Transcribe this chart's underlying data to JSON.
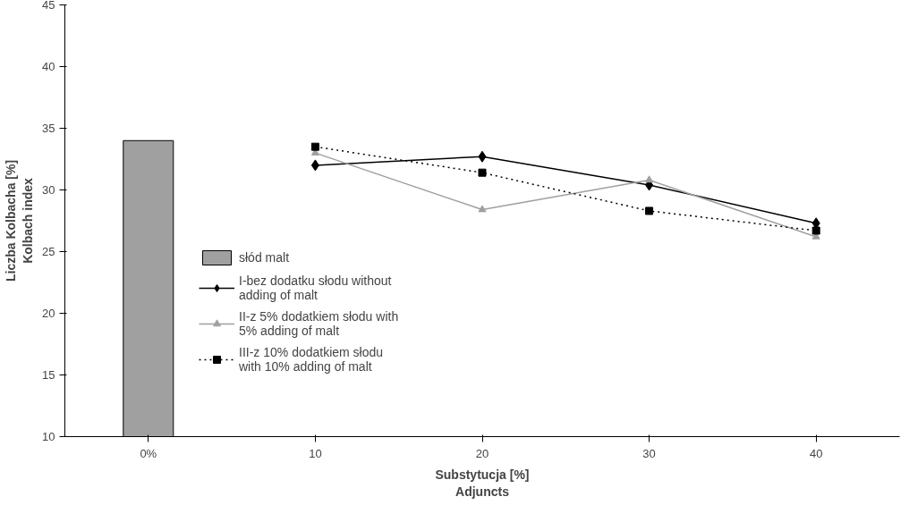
{
  "chart_data": {
    "type": "line",
    "xlabel": "Substytucja [%]\nAdjuncts",
    "ylabel": "Liczba Kolbacha [%]\nKolbach index",
    "categories": [
      "0%",
      "10",
      "20",
      "30",
      "40"
    ],
    "ylim": [
      10,
      45
    ],
    "yticks": [
      10,
      15,
      20,
      25,
      30,
      35,
      40,
      45
    ],
    "grid": false,
    "legend": "left",
    "series": [
      {
        "name": "słód malt",
        "type": "bar",
        "color": "#a0a0a0",
        "values": [
          34,
          null,
          null,
          null,
          null
        ]
      },
      {
        "name": "I-bez dodatku słodu without\nadding of malt",
        "color": "#000000",
        "marker": "diamond",
        "line_style": "solid",
        "values": [
          null,
          32,
          32.7,
          30.4,
          27.3
        ]
      },
      {
        "name": "II-z 5% dodatkiem słodu with\n5% adding of malt",
        "color": "#a0a0a0",
        "marker": "triangle",
        "line_style": "solid",
        "values": [
          null,
          33,
          28.4,
          30.8,
          26.2
        ]
      },
      {
        "name": "III-z 10% dodatkiem słodu\nwith 10% adding of malt",
        "color": "#000000",
        "marker": "square",
        "line_style": "dotted",
        "values": [
          null,
          33.5,
          31.4,
          28.3,
          26.7
        ]
      }
    ]
  }
}
